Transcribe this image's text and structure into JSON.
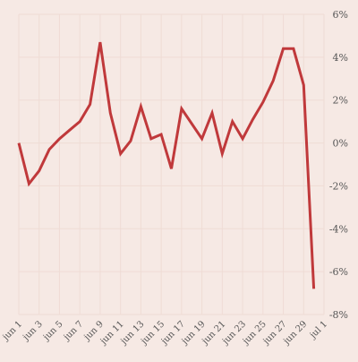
{
  "chart_data": {
    "type": "line",
    "title": "",
    "xlabel": "",
    "ylabel": "",
    "ylim": [
      -8,
      6
    ],
    "y_ticks": [
      6,
      4,
      2,
      0,
      -2,
      -4,
      -6,
      -8
    ],
    "y_tick_labels": [
      "6%",
      "4%",
      "2%",
      "0%",
      "-2%",
      "-4%",
      "-6%",
      "-8%"
    ],
    "y_axis_position": "right",
    "grid": true,
    "x_tick_labels": [
      "jun 1",
      "jun 3",
      "jun 5",
      "jun 7",
      "jun 9",
      "jun 11",
      "jun 13",
      "jun 15",
      "jun 17",
      "jun 19",
      "jun 21",
      "jun 23",
      "jun 25",
      "jun 27",
      "jun 29",
      "jul 1"
    ],
    "x_dates": [
      "jun 1",
      "jun 2",
      "jun 3",
      "jun 4",
      "jun 5",
      "jun 6",
      "jun 7",
      "jun 8",
      "jun 9",
      "jun 10",
      "jun 11",
      "jun 12",
      "jun 13",
      "jun 14",
      "jun 15",
      "jun 16",
      "jun 17",
      "jun 18",
      "jun 19",
      "jun 20",
      "jun 21",
      "jun 22",
      "jun 23",
      "jun 24",
      "jun 25",
      "jun 26",
      "jun 27",
      "jun 28",
      "jun 29",
      "jun 30",
      "jul 1"
    ],
    "series": [
      {
        "color": "#c0393b",
        "values": [
          0.0,
          -1.9,
          -1.3,
          -0.3,
          0.2,
          0.6,
          1.0,
          1.8,
          4.7,
          1.4,
          -0.5,
          0.1,
          1.7,
          0.2,
          0.4,
          -1.2,
          1.6,
          0.9,
          0.2,
          1.4,
          -0.5,
          1.0,
          0.2,
          1.1,
          1.9,
          2.9,
          4.4,
          4.4,
          2.7,
          -6.8,
          null
        ]
      }
    ],
    "colors": {
      "background": "#f6e9e4",
      "grid": "#efdcd5",
      "line": "#c0393b",
      "text": "#555555"
    }
  }
}
